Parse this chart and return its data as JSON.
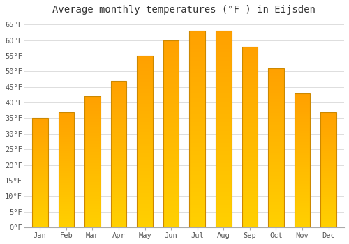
{
  "title": "Average monthly temperatures (°F ) in Eijsden",
  "months": [
    "Jan",
    "Feb",
    "Mar",
    "Apr",
    "May",
    "Jun",
    "Jul",
    "Aug",
    "Sep",
    "Oct",
    "Nov",
    "Dec"
  ],
  "values": [
    35,
    37,
    42,
    47,
    55,
    60,
    63,
    63,
    58,
    51,
    43,
    37
  ],
  "ylim": [
    0,
    67
  ],
  "yticks": [
    0,
    5,
    10,
    15,
    20,
    25,
    30,
    35,
    40,
    45,
    50,
    55,
    60,
    65
  ],
  "ytick_labels": [
    "0°F",
    "5°F",
    "10°F",
    "15°F",
    "20°F",
    "25°F",
    "30°F",
    "35°F",
    "40°F",
    "45°F",
    "50°F",
    "55°F",
    "60°F",
    "65°F"
  ],
  "bar_color_bottom": "#FFD000",
  "bar_color_top": "#FFA000",
  "bar_edge_color": "#CC8800",
  "background_color": "#FFFFFF",
  "grid_color": "#DDDDDD",
  "title_fontsize": 10,
  "tick_fontsize": 7.5,
  "font_family": "monospace",
  "bar_width": 0.6
}
